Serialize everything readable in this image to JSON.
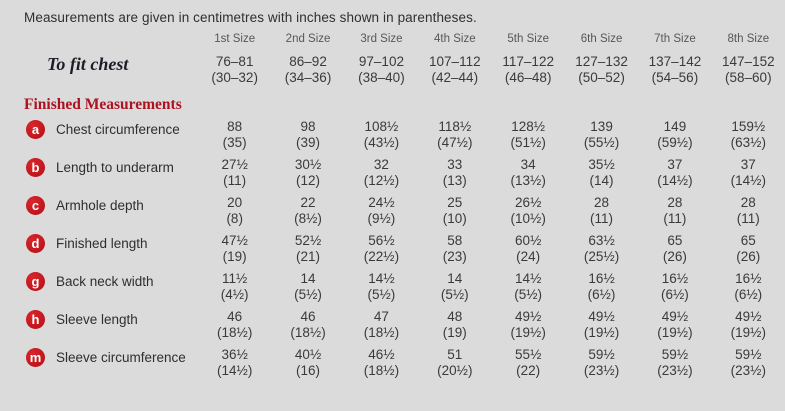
{
  "title": "Measurements are given in centimetres with inches shown in parentheses.",
  "columns": [
    "1st Size",
    "2nd Size",
    "3rd Size",
    "4th Size",
    "5th Size",
    "6th Size",
    "7th Size",
    "8th Size"
  ],
  "to_fit_chest": {
    "label": "To fit chest",
    "cm": [
      "76–81",
      "86–92",
      "97–102",
      "107–112",
      "117–122",
      "127–132",
      "137–142",
      "147–152"
    ],
    "in": [
      "(30–32)",
      "(34–36)",
      "(38–40)",
      "(42–44)",
      "(46–48)",
      "(50–52)",
      "(54–56)",
      "(58–60)"
    ]
  },
  "section_heading": "Finished Measurements",
  "rows": [
    {
      "key": "a",
      "label": "Chest circumference",
      "cm": [
        "88",
        "98",
        "108½",
        "118½",
        "128½",
        "139",
        "149",
        "159½"
      ],
      "in": [
        "(35)",
        "(39)",
        "(43½)",
        "(47½)",
        "(51½)",
        "(55½)",
        "(59½)",
        "(63½)"
      ]
    },
    {
      "key": "b",
      "label": "Length to underarm",
      "cm": [
        "27½",
        "30½",
        "32",
        "33",
        "34",
        "35½",
        "37",
        "37"
      ],
      "in": [
        "(11)",
        "(12)",
        "(12½)",
        "(13)",
        "(13½)",
        "(14)",
        "(14½)",
        "(14½)"
      ]
    },
    {
      "key": "c",
      "label": "Armhole depth",
      "cm": [
        "20",
        "22",
        "24½",
        "25",
        "26½",
        "28",
        "28",
        "28"
      ],
      "in": [
        "(8)",
        "(8½)",
        "(9½)",
        "(10)",
        "(10½)",
        "(11)",
        "(11)",
        "(11)"
      ]
    },
    {
      "key": "d",
      "label": "Finished length",
      "cm": [
        "47½",
        "52½",
        "56½",
        "58",
        "60½",
        "63½",
        "65",
        "65"
      ],
      "in": [
        "(19)",
        "(21)",
        "(22½)",
        "(23)",
        "(24)",
        "(25½)",
        "(26)",
        "(26)"
      ]
    },
    {
      "key": "g",
      "label": "Back neck width",
      "cm": [
        "11½",
        "14",
        "14½",
        "14",
        "14½",
        "16½",
        "16½",
        "16½"
      ],
      "in": [
        "(4½)",
        "(5½)",
        "(5½)",
        "(5½)",
        "(5½)",
        "(6½)",
        "(6½)",
        "(6½)"
      ]
    },
    {
      "key": "h",
      "label": "Sleeve length",
      "cm": [
        "46",
        "46",
        "47",
        "48",
        "49½",
        "49½",
        "49½",
        "49½"
      ],
      "in": [
        "(18½)",
        "(18½)",
        "(18½)",
        "(19)",
        "(19½)",
        "(19½)",
        "(19½)",
        "(19½)"
      ]
    },
    {
      "key": "m",
      "label": "Sleeve circumference",
      "cm": [
        "36½",
        "40½",
        "46½",
        "51",
        "55½",
        "59½",
        "59½",
        "59½"
      ],
      "in": [
        "(14½)",
        "(16)",
        "(18½)",
        "(20½)",
        "(22)",
        "(23½)",
        "(23½)",
        "(23½)"
      ]
    }
  ],
  "colors": {
    "background": "#dbdbdb",
    "badge": "#c0151c",
    "heading": "#ac1220",
    "text": "#3a3a3c"
  }
}
